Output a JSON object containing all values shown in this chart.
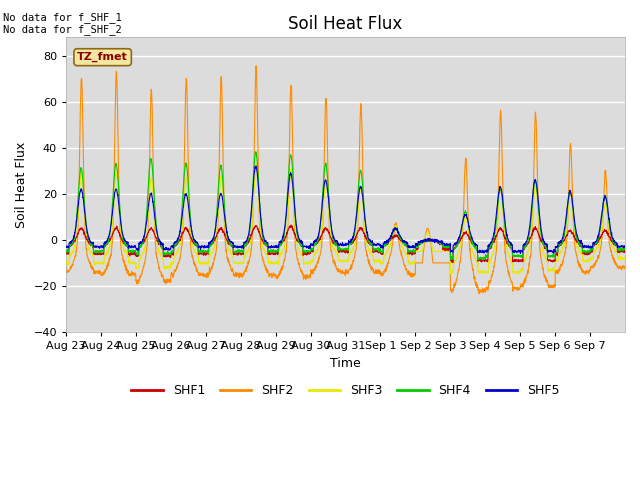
{
  "title": "Soil Heat Flux",
  "ylabel": "Soil Heat Flux",
  "xlabel": "Time",
  "ylim": [
    -40,
    88
  ],
  "yticks": [
    -40,
    -20,
    0,
    20,
    40,
    60,
    80
  ],
  "bg_color": "#dcdcdc",
  "note_line1": "No data for f_SHF_1",
  "note_line2": "No data for f_SHF_2",
  "tz_label": "TZ_fmet",
  "colors": {
    "SHF1": "#cc0000",
    "SHF2": "#ff8c00",
    "SHF3": "#e8e800",
    "SHF4": "#00cc00",
    "SHF5": "#0000cc"
  },
  "x_tick_labels": [
    "Aug 23",
    "Aug 24",
    "Aug 25",
    "Aug 26",
    "Aug 27",
    "Aug 28",
    "Aug 29",
    "Aug 30",
    "Aug 31",
    "Sep 1",
    "Sep 2",
    "Sep 3",
    "Sep 4",
    "Sep 5",
    "Sep 6",
    "Sep 7"
  ],
  "shf2_peaks": [
    71,
    73,
    65,
    70,
    71,
    75,
    68,
    62,
    59,
    7,
    0,
    35,
    56,
    55,
    42,
    30
  ],
  "shf3_peaks": [
    30,
    29,
    27,
    27,
    28,
    33,
    30,
    26,
    23,
    6,
    0,
    10,
    22,
    24,
    20,
    16
  ],
  "shf4_peaks": [
    31,
    33,
    35,
    33,
    32,
    38,
    37,
    33,
    30,
    5,
    0,
    12,
    22,
    26,
    21,
    19
  ],
  "shf5_peaks": [
    22,
    22,
    20,
    20,
    20,
    32,
    29,
    26,
    23,
    5,
    0,
    11,
    23,
    26,
    21,
    19
  ],
  "shf1_peaks": [
    5,
    5,
    5,
    5,
    5,
    6,
    6,
    5,
    5,
    2,
    0,
    3,
    5,
    5,
    4,
    4
  ],
  "shf2_night": [
    -14,
    -15,
    -18,
    -15,
    -15,
    -15,
    -16,
    -14,
    -14,
    -15,
    -10,
    -22,
    -21,
    -20,
    -14,
    -12
  ],
  "shf3_night": [
    -10,
    -10,
    -12,
    -10,
    -10,
    -10,
    -10,
    -9,
    -9,
    -10,
    -5,
    -14,
    -14,
    -13,
    -9,
    -8
  ],
  "shf4_night": [
    -5,
    -5,
    -6,
    -5,
    -5,
    -5,
    -5,
    -4,
    -4,
    -5,
    -3,
    -8,
    -7,
    -7,
    -5,
    -4
  ],
  "shf5_night": [
    -3,
    -3,
    -4,
    -3,
    -3,
    -3,
    -3,
    -2,
    -2,
    -3,
    -2,
    -5,
    -5,
    -5,
    -3,
    -3
  ],
  "shf1_night": [
    -6,
    -6,
    -7,
    -6,
    -6,
    -6,
    -6,
    -5,
    -5,
    -6,
    -4,
    -9,
    -9,
    -9,
    -6,
    -5
  ],
  "n_days": 16,
  "pts_per_day": 144
}
